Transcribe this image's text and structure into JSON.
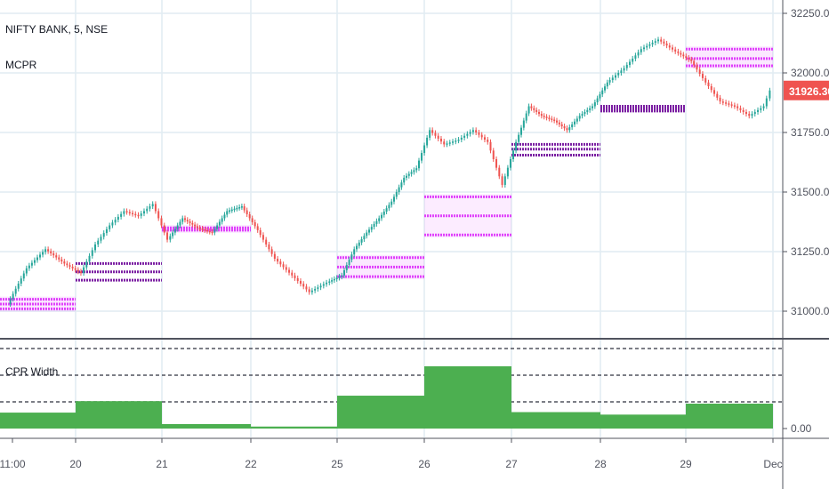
{
  "header": {
    "symbol_line": "NIFTY BANK, 5, NSE",
    "indicator": "MCPR"
  },
  "price_pane": {
    "price_labels": [
      "32250.00",
      "32000.00",
      "31750.00",
      "31500.00",
      "31250.00",
      "31000.00"
    ],
    "last_price": "31926.30",
    "last_price_color": "#ef5350"
  },
  "sub_pane": {
    "title": "CPR Width",
    "zero_label": "0.00"
  },
  "x_axis": {
    "ticks": [
      "11:00",
      "20",
      "21",
      "22",
      "25",
      "26",
      "27",
      "28",
      "29",
      "Dec"
    ]
  },
  "colors": {
    "up": "#26a69a",
    "down": "#ef5350",
    "cpr_light": "#e040fb",
    "cpr_dark": "#7b1fa2",
    "histogram": "#4caf50",
    "grid": "#e1ecf2"
  },
  "chart_data": [
    {
      "type": "line",
      "title": "NIFTY BANK, 5, NSE",
      "ylim": [
        30870,
        32300
      ],
      "series": [
        {
          "name": "",
          "points": [
            [
              "11:00",
              31030
            ],
            [
              "11:00",
              31180
            ],
            [
              "11:00",
              31260
            ],
            [
              "11:00",
              31200
            ],
            [
              "20",
              31160
            ],
            [
              "20",
              31280
            ],
            [
              "20",
              31360
            ],
            [
              "20",
              31420
            ],
            [
              "20",
              31400
            ],
            [
              "20",
              31450
            ],
            [
              "21",
              31300
            ],
            [
              "21",
              31390
            ],
            [
              "21",
              31350
            ],
            [
              "21",
              31330
            ],
            [
              "21",
              31420
            ],
            [
              "21",
              31440
            ],
            [
              "22",
              31340
            ],
            [
              "22",
              31220
            ],
            [
              "22",
              31150
            ],
            [
              "22",
              31080
            ],
            [
              "22",
              31120
            ],
            [
              "25",
              31150
            ],
            [
              "25",
              31260
            ],
            [
              "25",
              31330
            ],
            [
              "25",
              31390
            ],
            [
              "25",
              31460
            ],
            [
              "25",
              31560
            ],
            [
              "25",
              31600
            ],
            [
              "26",
              31760
            ],
            [
              "26",
              31700
            ],
            [
              "26",
              31720
            ],
            [
              "26",
              31760
            ],
            [
              "26",
              31710
            ],
            [
              "26",
              31530
            ],
            [
              "27",
              31710
            ],
            [
              "27",
              31860
            ],
            [
              "27",
              31820
            ],
            [
              "27",
              31800
            ],
            [
              "27",
              31760
            ],
            [
              "27",
              31820
            ],
            [
              "27",
              31860
            ],
            [
              "28",
              31960
            ],
            [
              "28",
              32020
            ],
            [
              "28",
              32100
            ],
            [
              "28",
              32140
            ],
            [
              "28",
              32090
            ],
            [
              "29",
              32050
            ],
            [
              "29",
              31960
            ],
            [
              "29",
              31880
            ],
            [
              "29",
              31860
            ],
            [
              "29",
              31820
            ],
            [
              "29",
              31860
            ],
            [
              "Dec",
              31926.3
            ]
          ]
        }
      ],
      "cpr_levels": [
        {
          "day": "11:00",
          "shade": "light",
          "levels": [
            31050,
            31030,
            31010
          ]
        },
        {
          "day": "20",
          "shade": "dark",
          "levels": [
            31200,
            31165,
            31130
          ]
        },
        {
          "day": "21",
          "shade": "light",
          "levels": [
            31350,
            31345,
            31340
          ]
        },
        {
          "day": "25",
          "shade": "light",
          "levels": [
            31225,
            31185,
            31145
          ]
        },
        {
          "day": "26",
          "shade": "light",
          "levels": [
            31480,
            31400,
            31320
          ]
        },
        {
          "day": "27",
          "shade": "dark",
          "levels": [
            31700,
            31680,
            31655
          ]
        },
        {
          "day": "28",
          "shade": "dark",
          "levels": [
            31860,
            31850,
            31840
          ]
        },
        {
          "day": "29",
          "shade": "light",
          "levels": [
            32100,
            32060,
            32030
          ]
        }
      ]
    },
    {
      "type": "bar",
      "title": "CPR Width",
      "categories": [
        "11:00",
        "20",
        "21",
        "22",
        "25",
        "26",
        "27",
        "28",
        "29"
      ],
      "values": [
        0.32,
        0.55,
        0.09,
        0.04,
        0.66,
        1.25,
        0.33,
        0.28,
        0.5
      ],
      "ylim": [
        0,
        1.9
      ]
    }
  ]
}
